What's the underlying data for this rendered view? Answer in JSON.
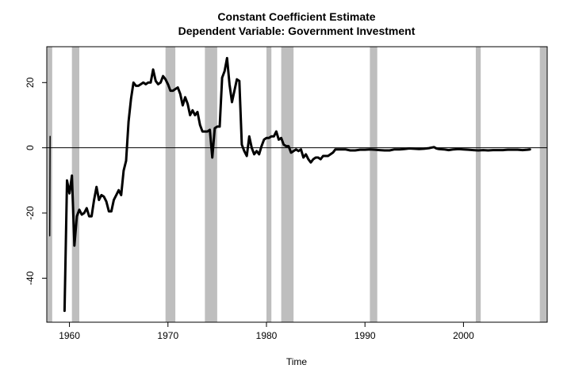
{
  "chart_data": {
    "type": "line",
    "title": "Constant Coefficient Estimate",
    "subtitle": "Dependent Variable: Government Investment",
    "xlabel": "Time",
    "ylabel": "",
    "xlim": [
      1957.7,
      2008.5
    ],
    "ylim": [
      -53.5,
      31
    ],
    "x_ticks": [
      1960,
      1970,
      1980,
      1990,
      2000
    ],
    "x_tick_labels": [
      "1960",
      "1970",
      "1980",
      "1990",
      "2000"
    ],
    "y_ticks": [
      -40,
      -20,
      0,
      20
    ],
    "y_tick_labels": [
      "-40",
      "-20",
      "0",
      "20"
    ],
    "reference_line": 0,
    "grid": false,
    "legend": "none",
    "line_color": "#000000",
    "shade_color": "#bebebe",
    "recession_bands": [
      [
        1957.75,
        1958.25
      ],
      [
        1960.25,
        1961.0
      ],
      [
        1969.75,
        1970.75
      ],
      [
        1973.75,
        1975.0
      ],
      [
        1980.0,
        1980.5
      ],
      [
        1981.5,
        1982.75
      ],
      [
        1990.5,
        1991.25
      ],
      [
        2001.25,
        2001.75
      ],
      [
        2007.75,
        2008.5
      ]
    ],
    "series": [
      {
        "x": [
          1958.0,
          1958.04
        ],
        "y": [
          -27,
          3.5
        ]
      },
      {
        "x": [
          1959.5,
          1959.75,
          1960.0,
          1960.25,
          1960.5,
          1960.75,
          1961.0,
          1961.25,
          1961.5,
          1961.75,
          1962.0,
          1962.25,
          1962.5,
          1962.75,
          1963.0,
          1963.25,
          1963.5,
          1963.75,
          1964.0,
          1964.25,
          1964.5,
          1964.75,
          1965.0,
          1965.25,
          1965.5,
          1965.75,
          1966.0,
          1966.25,
          1966.5,
          1966.75,
          1967.0,
          1967.25,
          1967.5,
          1967.75,
          1968.0,
          1968.25,
          1968.5,
          1968.75,
          1969.0,
          1969.25,
          1969.5,
          1969.75,
          1970.0,
          1970.25,
          1970.5,
          1970.75,
          1971.0,
          1971.25,
          1971.5,
          1971.75,
          1972.0,
          1972.25,
          1972.5,
          1972.75,
          1973.0,
          1973.25,
          1973.5,
          1973.75,
          1974.0,
          1974.25,
          1974.5,
          1974.75,
          1975.0,
          1975.25,
          1975.5,
          1975.75,
          1976.0,
          1976.25,
          1976.5,
          1976.75,
          1977.0,
          1977.25,
          1977.5,
          1977.75,
          1978.0,
          1978.25,
          1978.5,
          1978.75,
          1979.0,
          1979.25,
          1979.5,
          1979.75,
          1980.0,
          1980.25,
          1980.5,
          1980.75,
          1981.0,
          1981.25,
          1981.5,
          1981.75,
          1982.0,
          1982.25,
          1982.5,
          1982.75,
          1983.0,
          1983.25,
          1983.5,
          1983.75,
          1984.0,
          1984.25,
          1984.5,
          1984.75,
          1985.0,
          1985.25,
          1985.5,
          1985.75,
          1986.0,
          1986.25,
          1986.5,
          1986.75,
          1987.0,
          1987.25,
          1987.5,
          1987.75,
          1988.0,
          1988.5,
          1989.0,
          1989.5,
          1990.0,
          1990.5,
          1991.0,
          1991.5,
          1992.0,
          1992.5,
          1993.0,
          1993.5,
          1994.0,
          1994.5,
          1995.0,
          1995.5,
          1996.0,
          1996.5,
          1997.0,
          1997.25,
          1997.5,
          1998.0,
          1998.5,
          1999.0,
          1999.5,
          2000.0,
          2000.5,
          2001.0,
          2001.5,
          2002.0,
          2002.5,
          2003.0,
          2003.5,
          2004.0,
          2004.5,
          2005.0,
          2005.5,
          2006.0,
          2006.5,
          2006.75
        ],
        "y": [
          -50,
          -10,
          -14,
          -8.5,
          -30,
          -21,
          -19,
          -20.5,
          -20,
          -18.5,
          -21,
          -21,
          -16,
          -12,
          -16,
          -14.5,
          -15,
          -16.5,
          -19.5,
          -19.5,
          -16,
          -14.5,
          -13,
          -14.5,
          -7,
          -4,
          8,
          15,
          20,
          19,
          19,
          19.5,
          20,
          19.5,
          20,
          20,
          24,
          20.5,
          19.5,
          20,
          22,
          21,
          19.5,
          17.5,
          17.5,
          18,
          18.5,
          16.5,
          13,
          15.5,
          13.5,
          10,
          11.5,
          10,
          11,
          7,
          5,
          5,
          5,
          5.5,
          -3,
          6,
          6.5,
          6.5,
          21.5,
          23.5,
          27.5,
          19.5,
          14,
          17.5,
          21,
          20.5,
          1,
          -1,
          -2.5,
          3.5,
          0,
          -2,
          -1,
          -2,
          0.5,
          2.5,
          3,
          3,
          3.5,
          3.5,
          5,
          2.5,
          3,
          1,
          0.5,
          0.5,
          -1.5,
          -1,
          -0.5,
          -1,
          -0.5,
          -3,
          -2,
          -3.5,
          -4.5,
          -3.5,
          -3,
          -3,
          -3.5,
          -2.5,
          -2.5,
          -2.5,
          -2,
          -1.5,
          -0.5,
          -0.5,
          -0.5,
          -0.5,
          -0.5,
          -0.8,
          -0.8,
          -0.6,
          -0.6,
          -0.5,
          -0.6,
          -0.7,
          -0.8,
          -0.8,
          -0.5,
          -0.5,
          -0.4,
          -0.2,
          -0.3,
          -0.4,
          -0.3,
          -0.1,
          0.2,
          -0.2,
          -0.4,
          -0.5,
          -0.7,
          -0.5,
          -0.4,
          -0.5,
          -0.6,
          -0.7,
          -0.8,
          -0.7,
          -0.8,
          -0.7,
          -0.7,
          -0.7,
          -0.6,
          -0.6,
          -0.6,
          -0.7,
          -0.6,
          -0.5
        ]
      }
    ]
  }
}
